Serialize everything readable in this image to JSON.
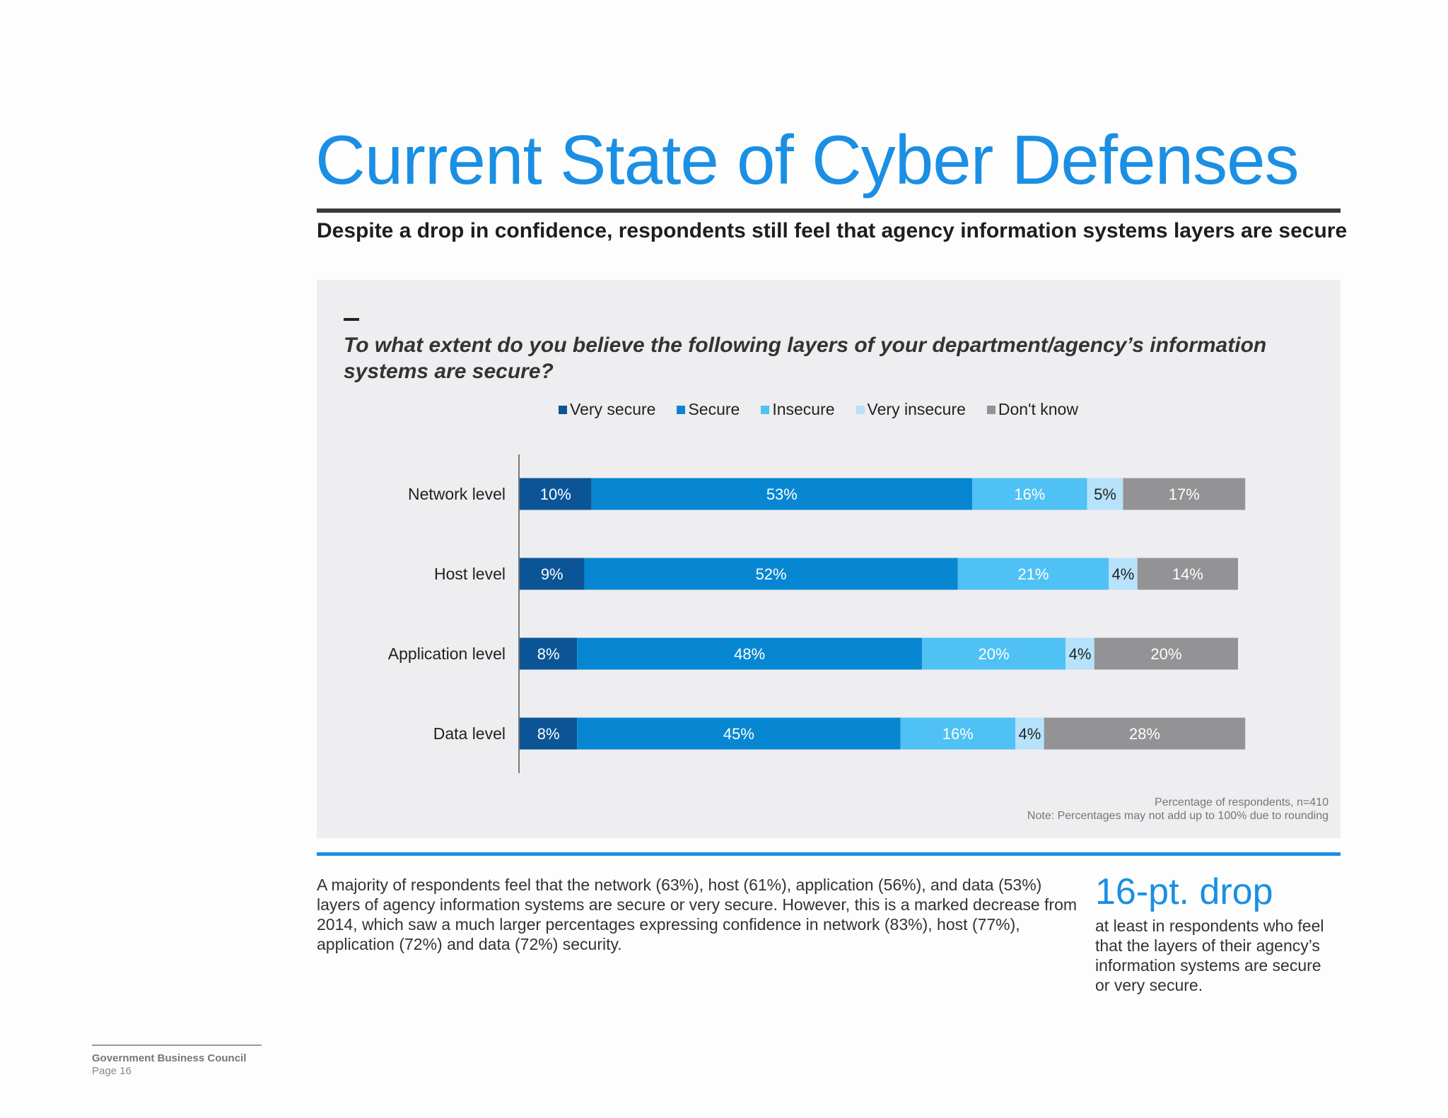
{
  "title": "Current State of Cyber Defenses",
  "subtitle": "Despite a drop in confidence, respondents still feel that agency information systems layers are secure",
  "chart_data": {
    "type": "bar",
    "orientation": "horizontal",
    "stacked": true,
    "title": "To what extent do you believe the following layers of your department/agency’s information systems are secure?",
    "categories": [
      "Network level",
      "Host level",
      "Application level",
      "Data level"
    ],
    "series": [
      {
        "name": "Very secure",
        "color": "#0b5597",
        "values": [
          10,
          9,
          8,
          8
        ]
      },
      {
        "name": "Secure",
        "color": "#0787d2",
        "values": [
          53,
          52,
          48,
          45
        ]
      },
      {
        "name": "Insecure",
        "color": "#50c1f4",
        "values": [
          16,
          21,
          20,
          16
        ]
      },
      {
        "name": "Very insecure",
        "color": "#b6e2fb",
        "values": [
          5,
          4,
          4,
          4
        ]
      },
      {
        "name": "Don't know",
        "color": "#939295",
        "values": [
          17,
          14,
          20,
          28
        ]
      }
    ],
    "data_label_suffix": "%",
    "legend_position": "top",
    "grid": false
  },
  "notes": {
    "line1": "Percentage of respondents, n=410",
    "line2": "Note: Percentages may not add up to 100% due to rounding"
  },
  "body_text": "A majority of respondents feel that the network (63%), host (61%), application (56%), and data (53%) layers of agency information systems are secure or very secure. However, this is a marked decrease from 2014, which saw a much larger percentages expressing confidence in network (83%), host (77%), application (72%) and data (72%) security.",
  "callout": {
    "headline": "16-pt. drop",
    "text": "at least in respondents who feel that the layers of their agency’s information systems are secure or very secure."
  },
  "footer": {
    "org": "Government Business Council",
    "page": "Page 16"
  }
}
